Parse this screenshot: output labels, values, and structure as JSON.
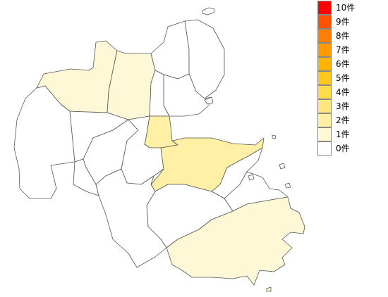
{
  "legend": {
    "items": [
      {
        "label": "10件",
        "color": "#ff0000"
      },
      {
        "label": "9件",
        "color": "#ff5200"
      },
      {
        "label": "8件",
        "color": "#ff7f00"
      },
      {
        "label": "7件",
        "color": "#ff9a00"
      },
      {
        "label": "6件",
        "color": "#ffb400"
      },
      {
        "label": "5件",
        "color": "#ffc81e"
      },
      {
        "label": "4件",
        "color": "#ffdc4a"
      },
      {
        "label": "3件",
        "color": "#ffe680"
      },
      {
        "label": "2件",
        "color": "#fff0a6"
      },
      {
        "label": "1件",
        "color": "#fff8d6"
      },
      {
        "label": "0件",
        "color": "#ffffff"
      }
    ]
  },
  "regions": [
    {
      "id": "himeshima",
      "value": 0
    },
    {
      "id": "nakatsu",
      "value": 1
    },
    {
      "id": "usa",
      "value": 1
    },
    {
      "id": "bungotakada",
      "value": 0
    },
    {
      "id": "kunisaki",
      "value": 0
    },
    {
      "id": "kitsuki",
      "value": 0
    },
    {
      "id": "hiji",
      "value": 0
    },
    {
      "id": "beppu",
      "value": 2
    },
    {
      "id": "oita",
      "value": 2
    },
    {
      "id": "usuki",
      "value": 0
    },
    {
      "id": "tsukumi",
      "value": 0
    },
    {
      "id": "saiki",
      "value": 1
    },
    {
      "id": "bungoono",
      "value": 0
    },
    {
      "id": "taketa",
      "value": 0
    },
    {
      "id": "yufu",
      "value": 0
    },
    {
      "id": "kokonoe",
      "value": 0
    },
    {
      "id": "kusu",
      "value": 0
    },
    {
      "id": "hita",
      "value": 0
    },
    {
      "id": "yabakei",
      "value": 0
    }
  ]
}
